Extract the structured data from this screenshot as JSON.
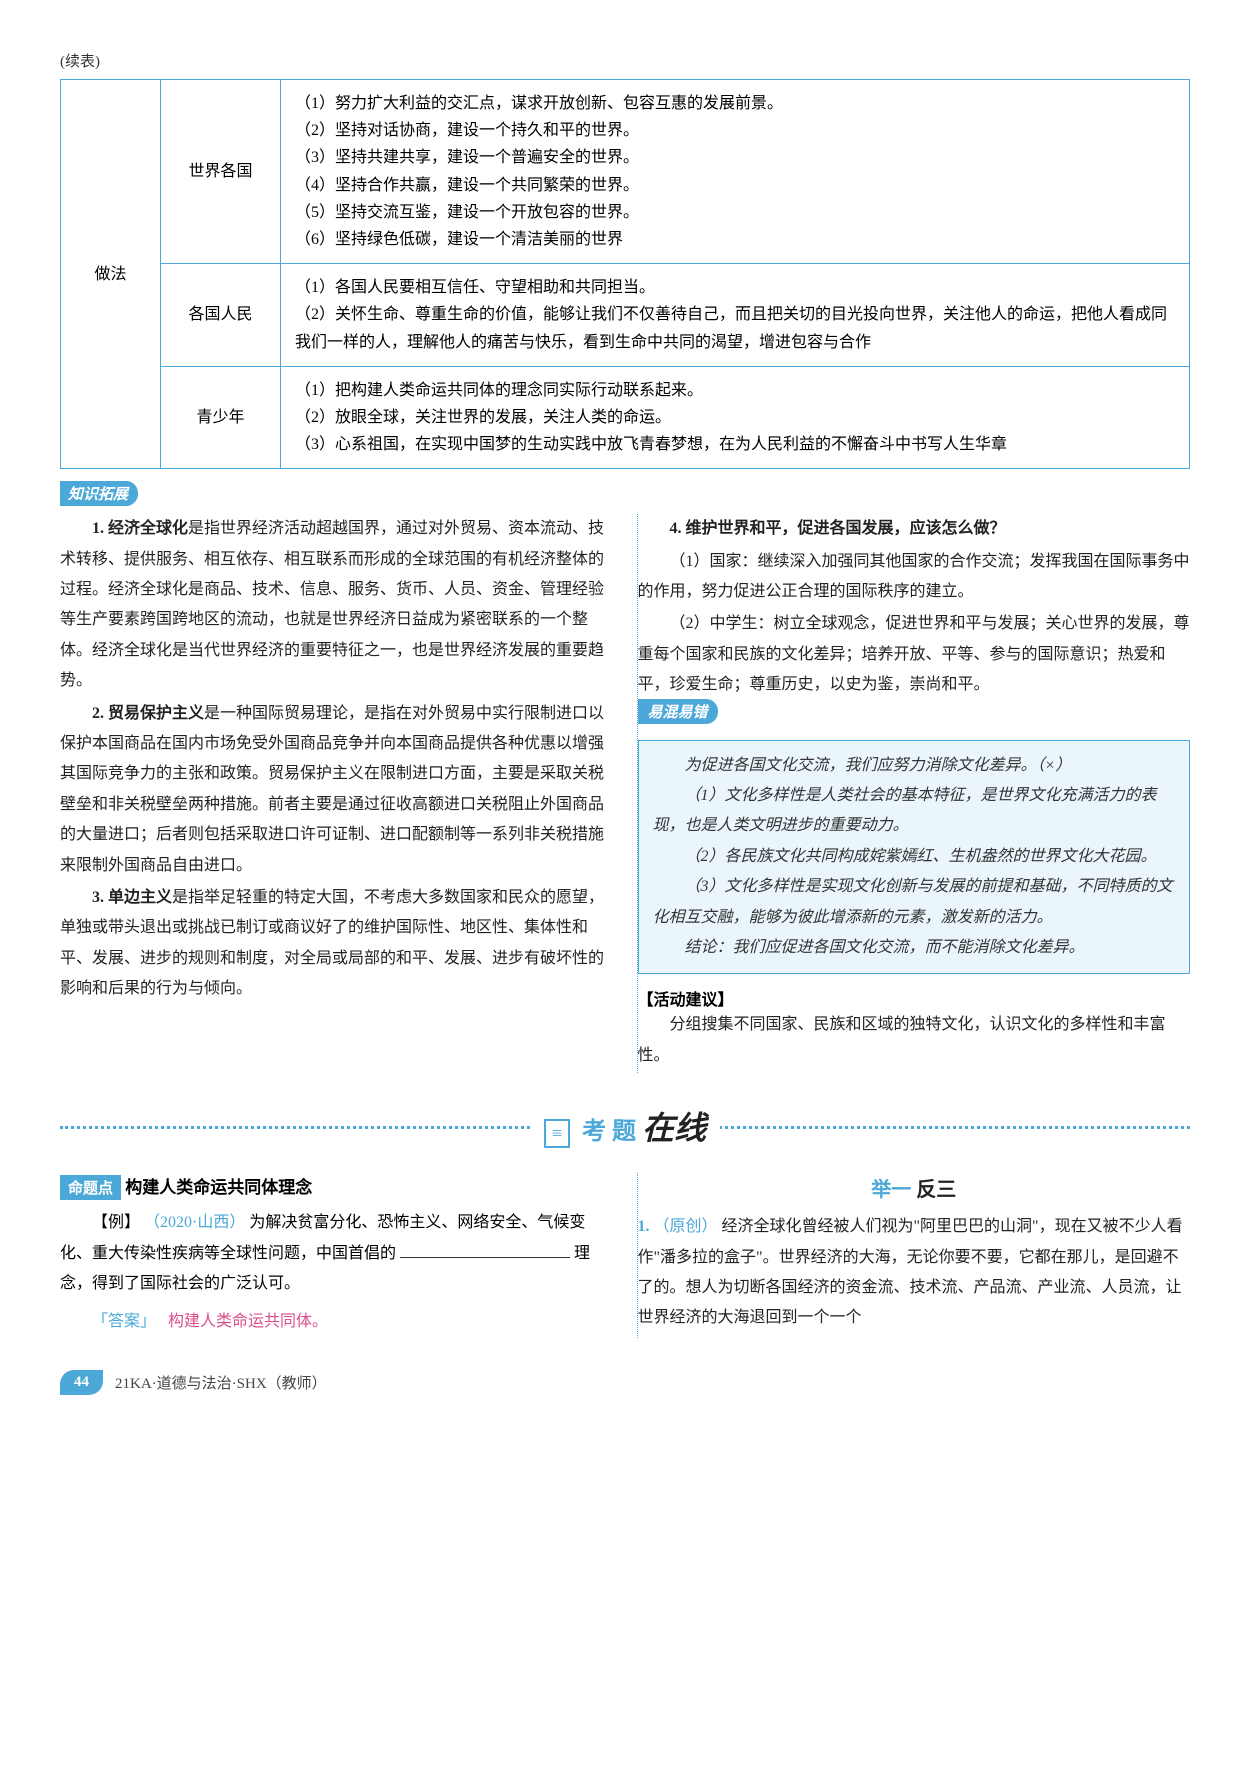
{
  "continueLabel": "(续表)",
  "table": {
    "category": "做法",
    "rows": [
      {
        "sub": "世界各国",
        "items": [
          "（1）努力扩大利益的交汇点，谋求开放创新、包容互惠的发展前景。",
          "（2）坚持对话协商，建设一个持久和平的世界。",
          "（3）坚持共建共享，建设一个普遍安全的世界。",
          "（4）坚持合作共赢，建设一个共同繁荣的世界。",
          "（5）坚持交流互鉴，建设一个开放包容的世界。",
          "（6）坚持绿色低碳，建设一个清洁美丽的世界"
        ]
      },
      {
        "sub": "各国人民",
        "items": [
          "（1）各国人民要相互信任、守望相助和共同担当。",
          "（2）关怀生命、尊重生命的价值，能够让我们不仅善待自己，而且把关切的目光投向世界，关注他人的命运，把他人看成同我们一样的人，理解他人的痛苦与快乐，看到生命中共同的渴望，增进包容与合作"
        ]
      },
      {
        "sub": "青少年",
        "items": [
          "（1）把构建人类命运共同体的理念同实际行动联系起来。",
          "（2）放眼全球，关注世界的发展，关注人类的命运。",
          "（3）心系祖国，在实现中国梦的生动实践中放飞青春梦想，在为人民利益的不懈奋斗中书写人生华章"
        ]
      }
    ]
  },
  "knowledgeHeader": "知识拓展",
  "left": {
    "p1a": "1. 经济全球化",
    "p1b": "是指世界经济活动超越国界，通过对外贸易、资本流动、技术转移、提供服务、相互依存、相互联系而形成的全球范围的有机经济整体的过程。经济全球化是商品、技术、信息、服务、货币、人员、资金、管理经验等生产要素跨国跨地区的流动，也就是世界经济日益成为紧密联系的一个整体。经济全球化是当代世界经济的重要特征之一，也是世界经济发展的重要趋势。",
    "p2a": "2. 贸易保护主义",
    "p2b": "是一种国际贸易理论，是指在对外贸易中实行限制进口以保护本国商品在国内市场免受外国商品竞争并向本国商品提供各种优惠以增强其国际竞争力的主张和政策。贸易保护主义在限制进口方面，主要是采取关税壁垒和非关税壁垒两种措施。前者主要是通过征收高额进口关税阻止外国商品的大量进口；后者则包括采取进口许可证制、进口配额制等一系列非关税措施来限制外国商品自由进口。",
    "p3a": "3. 单边主义",
    "p3b": "是指举足轻重的特定大国，不考虑大多数国家和民众的愿望，单独或带头退出或挑战已制订或商议好了的维护国际性、地区性、集体性和平、发展、进步的规则和制度，对全局或局部的和平、发展、进步有破坏性的影响和后果的行为与倾向。"
  },
  "right": {
    "q4": "4. 维护世界和平，促进各国发展，应该怎么做？",
    "a41": "（1）国家：继续深入加强同其他国家的合作交流；发挥我国在国际事务中的作用，努力促进公正合理的国际秩序的建立。",
    "a42": "（2）中学生：树立全球观念，促进世界和平与发展；关心世界的发展，尊重每个国家和民族的文化差异；培养开放、平等、参与的国际意识；热爱和平，珍爱生命；尊重历史，以史为鉴，崇尚和平。",
    "errHeader": "易混易错",
    "err0": "为促进各国文化交流，我们应努力消除文化差异。（×）",
    "err1": "（1）文化多样性是人类社会的基本特征，是世界文化充满活力的表现，也是人类文明进步的重要动力。",
    "err2": "（2）各民族文化共同构成姹紫嫣红、生机盎然的世界文化大花园。",
    "err3": "（3）文化多样性是实现文化创新与发展的前提和基础，不同特质的文化相互交融，能够为彼此增添新的元素，激发新的活力。",
    "err4": "结论：我们应促进各国文化交流，而不能消除文化差异。",
    "activityHeader": "【活动建议】",
    "activity": "分组搜集不同国家、民族和区域的独特文化，认识文化的多样性和丰富性。"
  },
  "examDivider": {
    "icon": "≡",
    "kaoti": "考 题",
    "zaixian": "在线"
  },
  "exam": {
    "topicTag": "命题点",
    "topicTitle": "构建人类命运共同体理念",
    "exLabel": "【例】",
    "exSrc": "（2020·山西）",
    "exBody1": "为解决贫富分化、恐怖主义、网络安全、气候变化、重大传染性疾病等全球性问题，中国首倡的",
    "exBody2": "理念，得到了国际社会的广泛认可。",
    "ansLabel": "「答案」",
    "ansText": "构建人类命运共同体。",
    "rightHeader1": "举一",
    "rightHeader2": "反三",
    "q1num": "1.",
    "q1src": "（原创）",
    "q1body": "经济全球化曾经被人们视为\"阿里巴巴的山洞\"，现在又被不少人看作\"潘多拉的盒子\"。世界经济的大海，无论你要不要，它都在那儿，是回避不了的。想人为切断各国经济的资金流、技术流、产品流、产业流、人员流，让世界经济的大海退回到一个一个"
  },
  "footer": {
    "page": "44",
    "text": "21KA·道德与法治·SHX（教师）"
  }
}
